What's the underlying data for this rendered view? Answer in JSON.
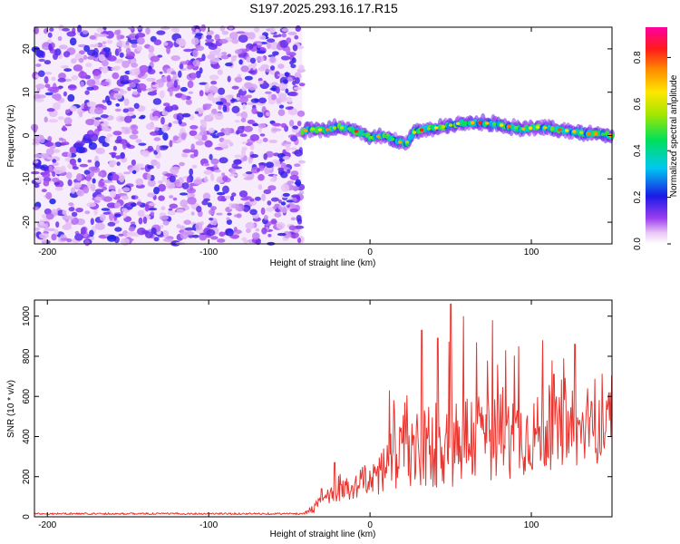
{
  "title": "S197.2025.293.16.17.R15",
  "colorbar": {
    "label": "Normalized spectral amplitude",
    "ticks": [
      "0.0",
      "0.2",
      "0.4",
      "0.6",
      "0.8"
    ],
    "range": [
      0,
      0.93
    ]
  },
  "chart_data": [
    {
      "type": "heatmap",
      "name": "spectrogram",
      "title": "S197.2025.293.16.17.R15",
      "xlabel": "Height of straight line (km)",
      "ylabel": "Frequency (Hz)",
      "xlim": [
        -208,
        150
      ],
      "ylim": [
        -25,
        25
      ],
      "xticks": [
        -200,
        -100,
        0,
        100
      ],
      "yticks": [
        -20,
        -10,
        0,
        10,
        20
      ],
      "noise_region_x": [
        -208,
        -42
      ],
      "signal_region_x": [
        -42,
        150
      ],
      "signal_track": {
        "x": [
          -42,
          -35,
          -28,
          -20,
          -12,
          -5,
          0,
          8,
          15,
          22,
          28,
          35,
          45,
          55,
          65,
          75,
          85,
          95,
          105,
          115,
          125,
          135,
          145,
          150
        ],
        "y": [
          1,
          1.5,
          1.2,
          2,
          1.5,
          0.5,
          -0.5,
          0,
          -1,
          -2,
          1,
          1.5,
          2,
          2.8,
          3,
          2.8,
          2.2,
          1.5,
          2,
          1.5,
          1,
          0.5,
          0.3,
          0
        ]
      },
      "peak_amplitude": 0.9
    },
    {
      "type": "line",
      "name": "snr",
      "xlabel": "Height of straight line (km)",
      "ylabel": "SNR (10 * v/v)",
      "xlim": [
        -208,
        150
      ],
      "ylim": [
        0,
        1080
      ],
      "xticks": [
        -200,
        -100,
        0,
        100
      ],
      "yticks": [
        0,
        200,
        400,
        600,
        800,
        1000
      ],
      "color": "#e8352f",
      "series": [
        {
          "name": "SNR",
          "envelope": {
            "x": [
              -208,
              -42,
              -35,
              -28,
              -20,
              -10,
              0,
              10,
              20,
              30,
              40,
              50,
              60,
              70,
              80,
              90,
              100,
              110,
              120,
              130,
              140,
              150
            ],
            "baseline": [
              15,
              15,
              40,
              90,
              120,
              140,
              180,
              230,
              280,
              310,
              340,
              360,
              370,
              380,
              380,
              380,
              390,
              400,
              400,
              410,
              410,
              420
            ],
            "amplitude": [
              8,
              8,
              40,
              70,
              90,
              110,
              170,
              260,
              330,
              380,
              420,
              460,
              440,
              420,
              400,
              380,
              360,
              340,
              330,
              320,
              300,
              280
            ]
          },
          "peaks": [
            {
              "x": -30,
              "y": 140
            },
            {
              "x": -22,
              "y": 270
            },
            {
              "x": 12,
              "y": 630
            },
            {
              "x": 32,
              "y": 930
            },
            {
              "x": 42,
              "y": 890
            },
            {
              "x": 50,
              "y": 1060
            },
            {
              "x": 58,
              "y": 1000
            },
            {
              "x": 66,
              "y": 870
            },
            {
              "x": 76,
              "y": 980
            },
            {
              "x": 84,
              "y": 830
            },
            {
              "x": 92,
              "y": 850
            },
            {
              "x": 107,
              "y": 880
            },
            {
              "x": 114,
              "y": 710
            },
            {
              "x": 120,
              "y": 790
            },
            {
              "x": 127,
              "y": 860
            },
            {
              "x": 135,
              "y": 640
            },
            {
              "x": 148,
              "y": 620
            }
          ]
        }
      ]
    }
  ]
}
